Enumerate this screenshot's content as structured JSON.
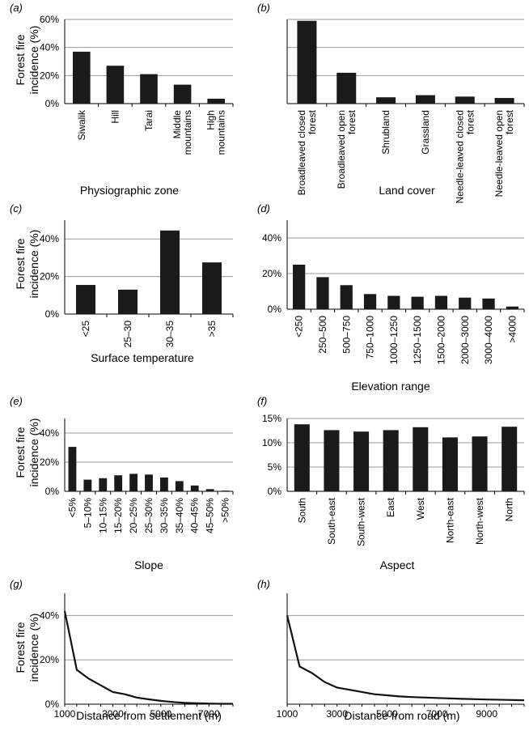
{
  "ylabel": "Forest fire incidence (%)",
  "chart_data": [
    {
      "panel": "(a)",
      "type": "bar",
      "xlabel": "Physiographic zone",
      "ylabel": "Forest fire incidence (%)",
      "categories": [
        "Siwalik",
        "Hill",
        "Tarai",
        "Middle mountains",
        "High mountains"
      ],
      "values": [
        37,
        27,
        21,
        13.5,
        3.5
      ],
      "ylim": [
        0,
        60
      ],
      "yticks": [
        "0%",
        "20%",
        "40%",
        "60%"
      ],
      "grid": true
    },
    {
      "panel": "(b)",
      "type": "bar",
      "xlabel": "Land cover",
      "categories": [
        "Broadleaved closed forest",
        "Broadleaved open forest",
        "Shrubland",
        "Grassland",
        "Needle-leaved closed forest",
        "Needle-leaved open forest"
      ],
      "values": [
        59,
        22,
        4.5,
        6,
        5,
        4
      ],
      "ylim": [
        0,
        60
      ],
      "yticks": [],
      "grid": true
    },
    {
      "panel": "(c)",
      "type": "bar",
      "xlabel": "Surface temperature",
      "ylabel": "Forest fire incidence (%)",
      "categories": [
        "<25",
        "25–30",
        "30–35",
        ">35"
      ],
      "values": [
        15.5,
        13,
        44.5,
        27.5
      ],
      "ylim": [
        0,
        50
      ],
      "yticks": [
        "0%",
        "20%",
        "40%"
      ],
      "grid": true
    },
    {
      "panel": "(d)",
      "type": "bar",
      "xlabel": "Elevation range",
      "categories": [
        "<250",
        "250–500",
        "500–750",
        "750–1000",
        "1000–1250",
        "1250–1500",
        "1500–2000",
        "2000–3000",
        "3000–4000",
        ">4000"
      ],
      "values": [
        25,
        18,
        13.5,
        8.5,
        7.5,
        7,
        7.5,
        6.5,
        6,
        1.5
      ],
      "ylim": [
        0,
        50
      ],
      "yticks": [
        "0%",
        "20%",
        "40%"
      ],
      "grid": true
    },
    {
      "panel": "(e)",
      "type": "bar",
      "xlabel": "Slope",
      "ylabel": "Forest fire incidence (%)",
      "categories": [
        "<5%",
        "5–10%",
        "10–15%",
        "15–20%",
        "20–25%",
        "25–30%",
        "30–35%",
        "35–40%",
        "40–45%",
        "45–50%",
        ">50%"
      ],
      "values": [
        30.5,
        8,
        9,
        11,
        12,
        11.5,
        9.5,
        7,
        4,
        1.5,
        0.5
      ],
      "ylim": [
        0,
        50
      ],
      "yticks": [
        "0%",
        "20%",
        "40%"
      ],
      "grid": true
    },
    {
      "panel": "(f)",
      "type": "bar",
      "xlabel": "Aspect",
      "categories": [
        "South",
        "South-east",
        "South-west",
        "East",
        "West",
        "North-east",
        "North-west",
        "North"
      ],
      "values": [
        13.8,
        12.6,
        12.3,
        12.6,
        13.2,
        11.1,
        11.3,
        13.3
      ],
      "ylim": [
        0,
        15
      ],
      "yticks": [
        "0%",
        "5%",
        "10%",
        "15%"
      ],
      "grid": true
    },
    {
      "panel": "(g)",
      "type": "line",
      "xlabel": "Distance from settlement (m)",
      "ylabel": "Forest fire incidence (%)",
      "x": [
        1000,
        1500,
        2000,
        2500,
        3000,
        3500,
        4000,
        4500,
        5000,
        5500,
        6000,
        6500,
        7000,
        7500,
        8000
      ],
      "y": [
        42,
        15.5,
        11.5,
        8.5,
        5.5,
        4.5,
        3,
        2.2,
        1.5,
        1,
        0.6,
        0.4,
        0.3,
        0.2,
        0.2
      ],
      "xlim": [
        1000,
        8000
      ],
      "xticks": [
        "1000",
        "3000",
        "5000",
        "7000"
      ],
      "ylim": [
        0,
        50
      ],
      "yticks": [
        "0%",
        "20%",
        "40%"
      ],
      "grid": true
    },
    {
      "panel": "(h)",
      "type": "line",
      "xlabel": "Distance from road (m)",
      "x": [
        1000,
        1500,
        2000,
        2500,
        3000,
        3500,
        4000,
        4500,
        5000,
        5500,
        6000,
        7000,
        8000,
        9000,
        10000,
        10500
      ],
      "y": [
        40,
        17,
        14,
        10,
        7.5,
        6.5,
        5.5,
        4.5,
        4,
        3.5,
        3.2,
        2.8,
        2.4,
        2.1,
        1.9,
        1.8
      ],
      "xlim": [
        1000,
        10500
      ],
      "xticks": [
        "1000",
        "3000",
        "5000",
        "7000",
        "9000"
      ],
      "ylim": [
        0,
        50
      ],
      "yticks": [],
      "grid": true
    }
  ]
}
